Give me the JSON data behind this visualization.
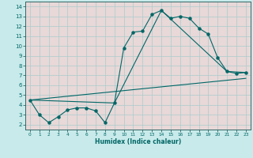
{
  "title": "",
  "xlabel": "Humidex (Indice chaleur)",
  "bg_color": "#c8eaea",
  "plot_bg_color": "#e8d8d8",
  "grid_color": "#aacccc",
  "line_color": "#006666",
  "spine_color": "#336666",
  "xlim": [
    -0.5,
    23.5
  ],
  "ylim": [
    1.5,
    14.5
  ],
  "yticks": [
    2,
    3,
    4,
    5,
    6,
    7,
    8,
    9,
    10,
    11,
    12,
    13,
    14
  ],
  "xticks": [
    0,
    1,
    2,
    3,
    4,
    5,
    6,
    7,
    8,
    9,
    10,
    11,
    12,
    13,
    14,
    15,
    16,
    17,
    18,
    19,
    20,
    21,
    22,
    23
  ],
  "line1_x": [
    0,
    1,
    2,
    3,
    4,
    5,
    6,
    7,
    8,
    9,
    10,
    11,
    12,
    13,
    14,
    15,
    16,
    17,
    18,
    19,
    20,
    21,
    22,
    23
  ],
  "line1_y": [
    4.5,
    3.0,
    2.2,
    2.8,
    3.5,
    3.7,
    3.7,
    3.4,
    2.2,
    4.2,
    9.8,
    11.4,
    11.5,
    13.2,
    13.6,
    12.8,
    13.0,
    12.8,
    11.8,
    11.2,
    8.8,
    7.4,
    7.2,
    7.3
  ],
  "line2_x": [
    0,
    9,
    14,
    21,
    23
  ],
  "line2_y": [
    4.5,
    4.2,
    13.6,
    7.4,
    7.3
  ],
  "line3_x": [
    0,
    23
  ],
  "line3_y": [
    4.5,
    6.7
  ]
}
